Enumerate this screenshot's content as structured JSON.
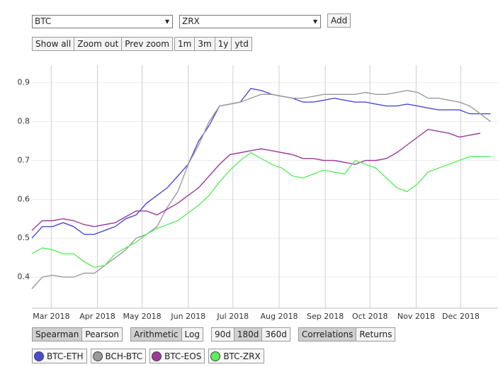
{
  "controls": {
    "selects": [
      "BTC",
      "ZRX"
    ],
    "add_button": "Add",
    "zoom_buttons": [
      "Show all",
      "Zoom out",
      "Prev zoom"
    ],
    "range_buttons": [
      "1m",
      "3m",
      "1y",
      "ytd"
    ],
    "toggle_groups": [
      {
        "options": [
          "Spearman",
          "Pearson"
        ],
        "selected": 0
      },
      {
        "options": [
          "Arithmetic",
          "Log"
        ],
        "selected": 0
      },
      {
        "options": [
          "90d",
          "180d",
          "360d"
        ],
        "selected": 1
      },
      {
        "options": [
          "Correlations",
          "Returns"
        ],
        "selected": 0
      }
    ]
  },
  "chart_data": {
    "type": "line",
    "x": [
      0,
      7,
      14,
      21,
      28,
      35,
      42,
      49,
      56,
      63,
      70,
      77,
      84,
      91,
      98,
      105,
      112,
      119,
      126,
      133,
      140,
      147,
      154,
      161,
      168,
      175,
      182,
      189,
      196,
      203,
      210,
      217,
      224,
      231,
      238,
      245,
      252,
      259,
      266,
      273,
      280,
      287,
      294,
      301,
      308
    ],
    "xlim": [
      0,
      313
    ],
    "xticks": [
      {
        "value": 13,
        "label": "Mar 2018"
      },
      {
        "value": 44,
        "label": "Apr 2018"
      },
      {
        "value": 74,
        "label": "May 2018"
      },
      {
        "value": 105,
        "label": "Jun 2018"
      },
      {
        "value": 135,
        "label": "Jul 2018"
      },
      {
        "value": 166,
        "label": "Aug 2018"
      },
      {
        "value": 197,
        "label": "Sep 2018"
      },
      {
        "value": 227,
        "label": "Oct 2018"
      },
      {
        "value": 258,
        "label": "Nov 2018"
      },
      {
        "value": 288,
        "label": "Dec 2018"
      }
    ],
    "ylim": [
      0.32,
      0.945
    ],
    "yticks": [
      0.4,
      0.5,
      0.6,
      0.7,
      0.8,
      0.9
    ],
    "grid": true,
    "series": [
      {
        "name": "BTC-ETH",
        "color": "#4a4ad8",
        "values": [
          0.5,
          0.53,
          0.53,
          0.54,
          0.53,
          0.51,
          0.51,
          0.52,
          0.53,
          0.55,
          0.56,
          0.59,
          0.61,
          0.63,
          0.66,
          0.69,
          0.75,
          0.79,
          0.84,
          0.845,
          0.85,
          0.885,
          0.88,
          0.87,
          0.865,
          0.86,
          0.85,
          0.85,
          0.855,
          0.86,
          0.855,
          0.85,
          0.85,
          0.845,
          0.84,
          0.84,
          0.845,
          0.84,
          0.835,
          0.83,
          0.83,
          0.83,
          0.82,
          0.82,
          0.82
        ]
      },
      {
        "name": "BCH-BTC",
        "color": "#9a9a9a",
        "values": [
          0.37,
          0.4,
          0.405,
          0.4,
          0.4,
          0.41,
          0.41,
          0.43,
          0.45,
          0.47,
          0.5,
          0.51,
          0.53,
          0.58,
          0.62,
          0.69,
          0.74,
          0.8,
          0.84,
          0.845,
          0.85,
          0.86,
          0.87,
          0.87,
          0.865,
          0.86,
          0.86,
          0.865,
          0.87,
          0.87,
          0.87,
          0.87,
          0.875,
          0.87,
          0.87,
          0.875,
          0.88,
          0.875,
          0.86,
          0.86,
          0.855,
          0.85,
          0.84,
          0.82,
          0.8
        ]
      },
      {
        "name": "BTC-EOS",
        "color": "#9b3a9b",
        "values": [
          0.52,
          0.545,
          0.545,
          0.55,
          0.545,
          0.535,
          0.53,
          0.535,
          0.54,
          0.555,
          0.57,
          0.57,
          0.56,
          0.575,
          0.59,
          0.61,
          0.63,
          0.66,
          0.69,
          0.715,
          0.72,
          0.725,
          0.73,
          0.725,
          0.72,
          0.715,
          0.705,
          0.705,
          0.7,
          0.7,
          0.695,
          0.69,
          0.7,
          0.7,
          0.705,
          0.72,
          0.74,
          0.76,
          0.78,
          0.775,
          0.77,
          0.76,
          0.765,
          0.77,
          null
        ]
      },
      {
        "name": "BTC-ZRX",
        "color": "#5ded5d",
        "values": [
          0.46,
          0.475,
          0.47,
          0.46,
          0.46,
          0.44,
          0.425,
          0.43,
          0.46,
          0.475,
          0.49,
          0.51,
          0.525,
          0.535,
          0.545,
          0.565,
          0.585,
          0.61,
          0.645,
          0.675,
          0.7,
          0.72,
          0.705,
          0.69,
          0.68,
          0.66,
          0.655,
          0.665,
          0.675,
          0.67,
          0.665,
          0.7,
          0.69,
          0.68,
          0.655,
          0.63,
          0.62,
          0.64,
          0.67,
          0.68,
          0.69,
          0.7,
          0.71,
          0.71,
          0.71
        ]
      }
    ]
  }
}
